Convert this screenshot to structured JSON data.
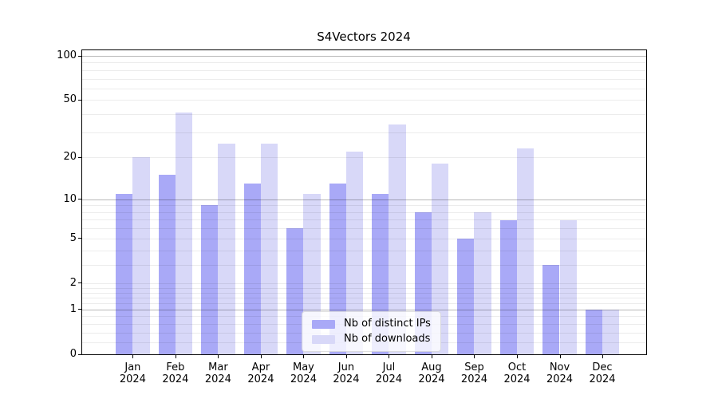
{
  "chart_data": {
    "type": "bar",
    "title": "S4Vectors 2024",
    "categories": [
      "Jan 2024",
      "Feb 2024",
      "Mar 2024",
      "Apr 2024",
      "May 2024",
      "Jun 2024",
      "Jul 2024",
      "Aug 2024",
      "Sep 2024",
      "Oct 2024",
      "Nov 2024",
      "Dec 2024"
    ],
    "series": [
      {
        "name": "Nb of distinct IPs",
        "color": "#a9a9f7",
        "values": [
          11,
          15,
          9,
          13,
          6,
          13,
          11,
          8,
          5,
          7,
          3,
          1
        ]
      },
      {
        "name": "Nb of downloads",
        "color": "#d8d8f8",
        "values": [
          20,
          41,
          25,
          25,
          11,
          22,
          34,
          18,
          8,
          23,
          7,
          1
        ]
      }
    ],
    "yscale": "log1p",
    "ylim": [
      0,
      110
    ],
    "yticks": [
      100,
      50,
      20,
      10,
      5,
      2,
      1,
      0
    ],
    "grid_major_values": [
      1,
      10,
      100
    ],
    "grid_minor_values": [
      0.2,
      0.4,
      0.6,
      0.8,
      1.2,
      1.4,
      1.6,
      1.8,
      2,
      3,
      4,
      5,
      6,
      7,
      8,
      9,
      20,
      30,
      40,
      50,
      60,
      70,
      80,
      90
    ],
    "grid": "on",
    "legend_position": "bottom-center",
    "colors": {
      "bar_distinct_ips": "#a9a9f7",
      "bar_downloads": "#d8d8f8",
      "axis": "#000000",
      "background": "#ffffff"
    }
  }
}
